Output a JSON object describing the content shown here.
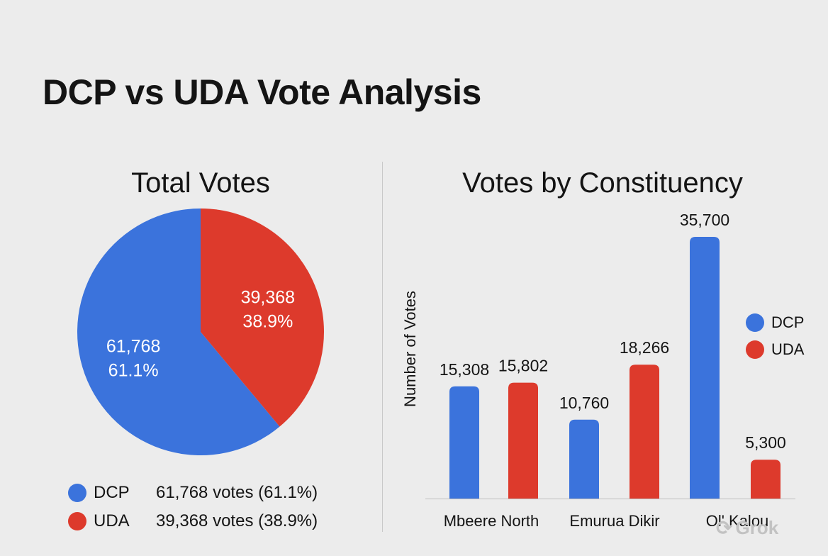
{
  "title": "DCP vs UDA Vote Analysis",
  "watermark": "Grok",
  "colors": {
    "DCP": "#3b73dc",
    "UDA": "#dd3a2c"
  },
  "chart_data": [
    {
      "type": "pie",
      "title": "Total Votes",
      "slices": [
        {
          "name": "DCP",
          "value": 61768,
          "label_value": "61,768",
          "label_pct": "61.1%",
          "legend_text": "61,768 votes (61.1%)"
        },
        {
          "name": "UDA",
          "value": 39368,
          "label_value": "39,368",
          "label_pct": "38.9%",
          "legend_text": "39,368 votes (38.9%)"
        }
      ],
      "legend_position": "bottom"
    },
    {
      "type": "bar",
      "title": "Votes by Constituency",
      "ylabel": "Number of Votes",
      "xlabel": "",
      "categories": [
        "Mbeere North",
        "Emurua Dikir",
        "Ol' Kalou"
      ],
      "series": [
        {
          "name": "DCP",
          "values": [
            15308,
            10760,
            35700
          ],
          "labels": [
            "15,308",
            "10,760",
            "35,700"
          ]
        },
        {
          "name": "UDA",
          "values": [
            15802,
            18266,
            5300
          ],
          "labels": [
            "15,802",
            "18,266",
            "5,300"
          ]
        }
      ],
      "ylim": [
        0,
        37000
      ],
      "grid": false,
      "legend_position": "right"
    }
  ]
}
